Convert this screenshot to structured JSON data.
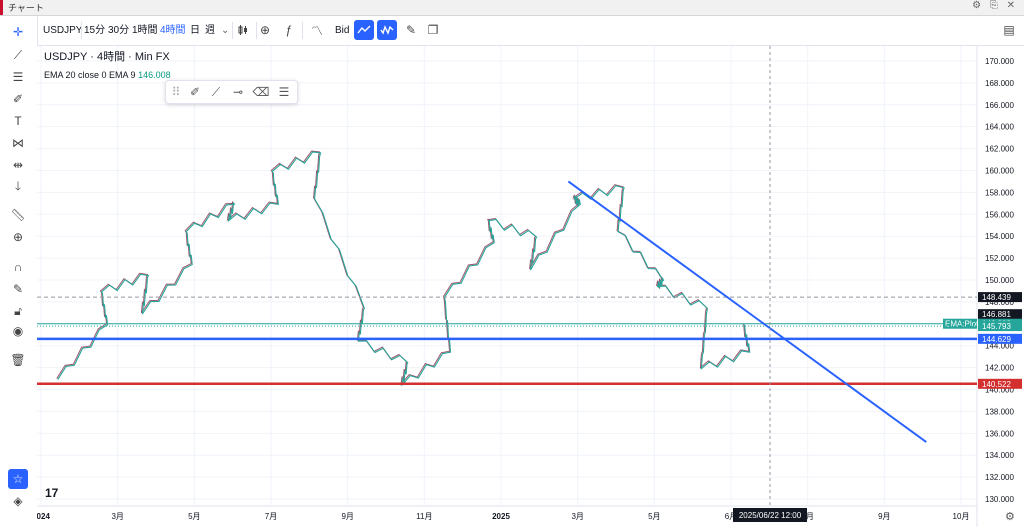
{
  "window": {
    "title": "チャート",
    "controls": "⚙ ⎘ ✕"
  },
  "toolbar": {
    "symbol": "USDJPY",
    "intervals": [
      "15分",
      "30分",
      "1時間",
      "4時間",
      "日",
      "週"
    ],
    "active_interval": "4時間",
    "price_side": "Bid",
    "icons": [
      "chevron-down-icon",
      "candle-style-icon",
      "add-icon",
      "fx-indicator-icon",
      "template-icon",
      "line-tool-icon",
      "wave-icon",
      "paint-icon",
      "copy-icon",
      "layout-icon"
    ]
  },
  "legend": {
    "line1": "USDJPY · 4時間 · Min FX",
    "ema_text": "EMA 20 close 0 EMA 9",
    "ema_value": "146.008"
  },
  "floating_toolbar": {
    "icons": [
      "drag-handle-icon",
      "brush-icon",
      "trendline-icon",
      "horizontal-ray-icon",
      "eraser-icon",
      "lines-icon"
    ]
  },
  "left_tools": [
    "crosshair-icon",
    "trendline-icon",
    "fib-icon",
    "brush-icon",
    "text-icon",
    "pattern-icon",
    "measure-icon",
    "arrow-down-icon",
    "ruler-icon",
    "zoom-icon",
    "magnet-icon",
    "lock-drawing-icon",
    "lock-icon",
    "eye-icon",
    "trash-icon",
    "star-icon",
    "layers-icon"
  ],
  "chart_data": {
    "type": "line",
    "ylim": [
      129,
      171
    ],
    "y_ticks": [
      "170.000",
      "168.000",
      "166.000",
      "164.000",
      "162.000",
      "160.000",
      "158.000",
      "156.000",
      "154.000",
      "152.000",
      "150.000",
      "148.000",
      "146.000",
      "144.000",
      "142.000",
      "140.000",
      "138.000",
      "136.000",
      "134.000",
      "132.000",
      "130.000"
    ],
    "x_ticks": [
      "2024",
      "3月",
      "5月",
      "7月",
      "9月",
      "11月",
      "2025",
      "3月",
      "5月",
      "6月",
      "8月",
      "9月",
      "10月"
    ],
    "x_bold": [
      "2024",
      "2025"
    ],
    "series": [
      {
        "name": "",
        "color": "#26a69a",
        "x": [
          "2024-01",
          "2024-02",
          "2024-02",
          "2024-03",
          "2024-03",
          "2024-04",
          "2024-04",
          "2024-05",
          "2024-05",
          "2024-06",
          "2024-06",
          "2024-07",
          "2024-07",
          "2024-08",
          "2024-08",
          "2024-09",
          "2024-09",
          "2024-10",
          "2024-10",
          "2024-11",
          "2024-11",
          "2024-12",
          "2024-12",
          "2025-01",
          "2025-01",
          "2025-02",
          "2025-02",
          "2025-03",
          "2025-03",
          "2025-04",
          "2025-04",
          "2025-05",
          "2025-05"
        ],
        "y": [
          141.0,
          146.0,
          149.0,
          150.5,
          147.0,
          151.5,
          154.5,
          157.0,
          155.5,
          157.0,
          160.0,
          161.7,
          157.5,
          147.5,
          144.5,
          142.5,
          140.5,
          143.5,
          148.5,
          153.5,
          155.5,
          154.0,
          151.0,
          157.0,
          157.5,
          158.5,
          154.5,
          150.0,
          149.5,
          147.5,
          142.0,
          143.5,
          146.0
        ]
      }
    ],
    "overlays": [
      {
        "label": "148.439",
        "value": 148.439,
        "style": "dashed",
        "color": "#9598a1"
      },
      {
        "label": "146.881",
        "value": 146.881,
        "style": "none",
        "color": "#131722"
      },
      {
        "label": "146.008",
        "value": 146.008,
        "style": "solid",
        "color": "#26a69a",
        "tag": "EMA:Plot"
      },
      {
        "label": "145.793",
        "value": 145.793,
        "style": "dotted",
        "color": "#26a69a"
      },
      {
        "label": "144.629",
        "value": 144.629,
        "style": "solid-thick",
        "color": "#2962ff"
      },
      {
        "label": "140.522",
        "value": 140.522,
        "style": "solid-thick",
        "color": "#d32f2f"
      }
    ],
    "trendline": {
      "from": [
        "2025-01",
        159.0
      ],
      "to": [
        "2025-09",
        135.2
      ],
      "color": "#2962ff"
    },
    "crosshair_label": "2025/06/22   12:00"
  }
}
